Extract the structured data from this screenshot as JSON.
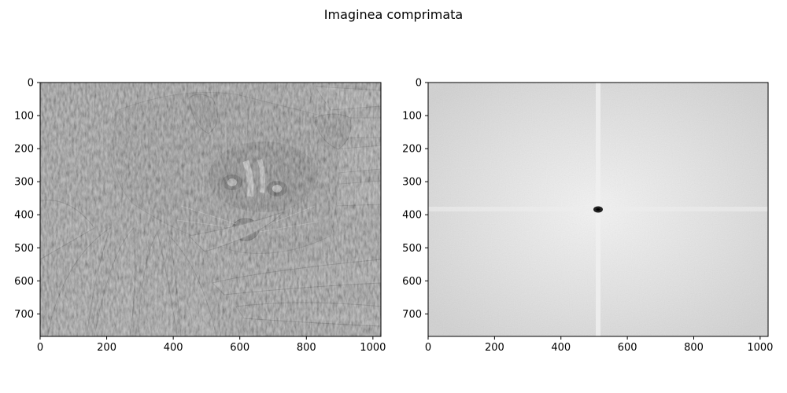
{
  "figure": {
    "suptitle": "Imaginea comprimata"
  },
  "chart_data": [
    {
      "type": "image",
      "subject": "raccoon-grayscale",
      "title": "",
      "xlabel": "",
      "ylabel": "",
      "xlim": [
        0,
        1024
      ],
      "ylim": [
        768,
        0
      ],
      "xticks": [
        0,
        200,
        400,
        600,
        800,
        1000
      ],
      "yticks": [
        0,
        100,
        200,
        300,
        400,
        500,
        600,
        700
      ],
      "colormap": "gray",
      "grid": false
    },
    {
      "type": "image",
      "subject": "fft-magnitude-spectrum",
      "title": "",
      "xlabel": "",
      "ylabel": "",
      "xlim": [
        0,
        1024
      ],
      "ylim": [
        768,
        0
      ],
      "xticks": [
        0,
        200,
        400,
        600,
        800,
        1000
      ],
      "yticks": [
        0,
        100,
        200,
        300,
        400,
        500,
        600,
        700
      ],
      "colormap": "gray",
      "grid": false,
      "center_spot": [
        512,
        384
      ]
    }
  ]
}
